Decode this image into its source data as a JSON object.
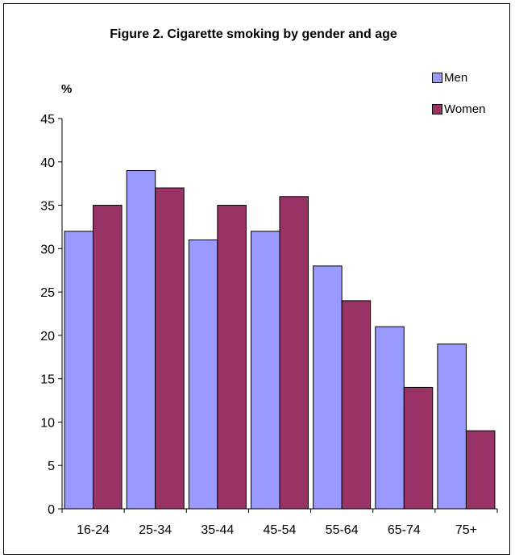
{
  "chart_data": {
    "type": "bar",
    "title": "Figure 2. Cigarette smoking by gender and age",
    "ylabel": "%",
    "xlabel": "",
    "categories": [
      "16-24",
      "25-34",
      "35-44",
      "45-54",
      "55-64",
      "65-74",
      "75+"
    ],
    "series": [
      {
        "name": "Men",
        "color": "#9999ff",
        "values": [
          32,
          39,
          31,
          32,
          28,
          21,
          19
        ]
      },
      {
        "name": "Women",
        "color": "#993366",
        "values": [
          35,
          37,
          35,
          36,
          24,
          14,
          9
        ]
      }
    ],
    "ylim": [
      0,
      45
    ],
    "yticks": [
      0,
      5,
      10,
      15,
      20,
      25,
      30,
      35,
      40,
      45
    ],
    "grid": false,
    "legend_position": "top-right"
  }
}
